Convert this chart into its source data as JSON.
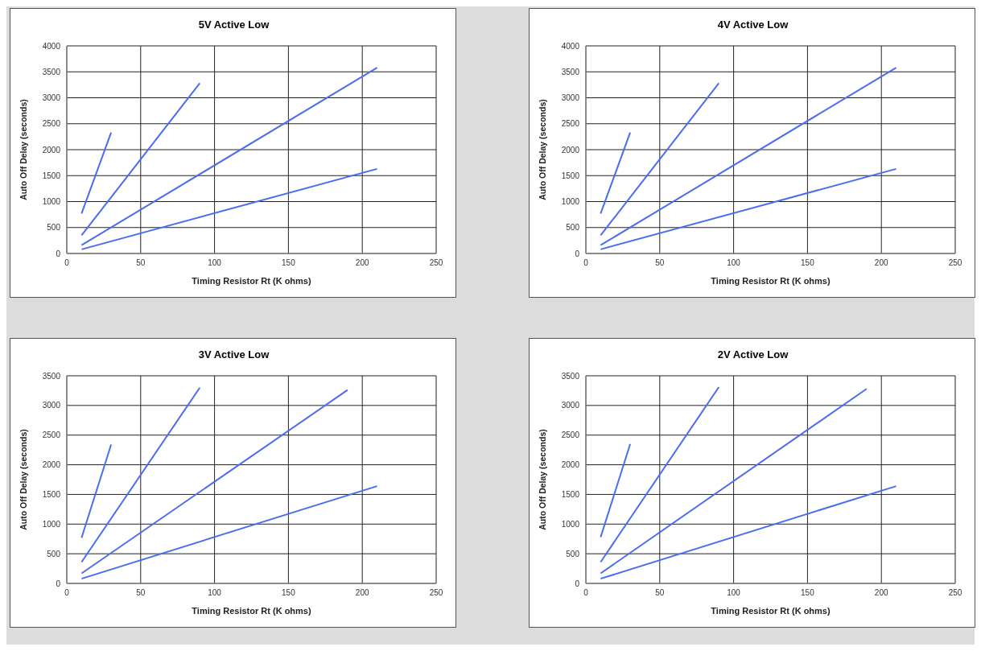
{
  "chart_data": [
    {
      "type": "line",
      "title": "5V Active Low",
      "xlabel": "Timing Resistor  Rt (K ohms)",
      "ylabel": "Auto Off Delay (seconds)",
      "xlim": [
        0,
        250
      ],
      "xticks": [
        0,
        50,
        100,
        150,
        200,
        250
      ],
      "ylim": [
        0,
        4000
      ],
      "yticks": [
        0,
        500,
        1000,
        1500,
        2000,
        2500,
        3000,
        3500,
        4000
      ],
      "grid": true,
      "marker": "none",
      "line_style": "solid",
      "series": [
        {
          "color": "#4a6cf0",
          "x": [
            10,
            30
          ],
          "values": [
            770,
            2330
          ]
        },
        {
          "color": "#4a6cf0",
          "x": [
            10,
            90
          ],
          "values": [
            350,
            3280
          ]
        },
        {
          "color": "#4a6cf0",
          "x": [
            10,
            210
          ],
          "values": [
            160,
            3580
          ]
        },
        {
          "color": "#4a6cf0",
          "x": [
            10,
            210
          ],
          "values": [
            80,
            1630
          ]
        }
      ]
    },
    {
      "type": "line",
      "title": "4V Active Low",
      "xlabel": "Timing Resistor  Rt (K ohms)",
      "ylabel": "Auto Off Delay (seconds)",
      "xlim": [
        0,
        250
      ],
      "xticks": [
        0,
        50,
        100,
        150,
        200,
        250
      ],
      "ylim": [
        0,
        4000
      ],
      "yticks": [
        0,
        500,
        1000,
        1500,
        2000,
        2500,
        3000,
        3500,
        4000
      ],
      "grid": true,
      "marker": "none",
      "line_style": "solid",
      "series": [
        {
          "color": "#4a6cf0",
          "x": [
            10,
            30
          ],
          "values": [
            770,
            2330
          ]
        },
        {
          "color": "#4a6cf0",
          "x": [
            10,
            90
          ],
          "values": [
            350,
            3280
          ]
        },
        {
          "color": "#4a6cf0",
          "x": [
            10,
            210
          ],
          "values": [
            160,
            3580
          ]
        },
        {
          "color": "#4a6cf0",
          "x": [
            10,
            210
          ],
          "values": [
            80,
            1630
          ]
        }
      ]
    },
    {
      "type": "line",
      "title": "3V Active Low",
      "xlabel": "Timing Resistor  Rt (K ohms)",
      "ylabel": "Auto Off Delay (seconds)",
      "xlim": [
        0,
        250
      ],
      "xticks": [
        0,
        50,
        100,
        150,
        200,
        250
      ],
      "ylim": [
        0,
        3500
      ],
      "yticks": [
        0,
        500,
        1000,
        1500,
        2000,
        2500,
        3000,
        3500
      ],
      "grid": true,
      "marker": "none",
      "line_style": "solid",
      "series": [
        {
          "color": "#4a6cf0",
          "x": [
            10,
            30
          ],
          "values": [
            770,
            2340
          ]
        },
        {
          "color": "#4a6cf0",
          "x": [
            10,
            90
          ],
          "values": [
            360,
            3300
          ]
        },
        {
          "color": "#4a6cf0",
          "x": [
            10,
            190
          ],
          "values": [
            170,
            3260
          ]
        },
        {
          "color": "#4a6cf0",
          "x": [
            10,
            210
          ],
          "values": [
            80,
            1640
          ]
        }
      ]
    },
    {
      "type": "line",
      "title": "2V Active Low",
      "xlabel": "Timing Resistor  Rt (K ohms)",
      "ylabel": "Auto Off Delay (seconds)",
      "xlim": [
        0,
        250
      ],
      "xticks": [
        0,
        50,
        100,
        150,
        200,
        250
      ],
      "ylim": [
        0,
        3500
      ],
      "yticks": [
        0,
        500,
        1000,
        1500,
        2000,
        2500,
        3000,
        3500
      ],
      "grid": true,
      "marker": "none",
      "line_style": "solid",
      "series": [
        {
          "color": "#4a6cf0",
          "x": [
            10,
            30
          ],
          "values": [
            780,
            2350
          ]
        },
        {
          "color": "#4a6cf0",
          "x": [
            10,
            90
          ],
          "values": [
            360,
            3310
          ]
        },
        {
          "color": "#4a6cf0",
          "x": [
            10,
            190
          ],
          "values": [
            170,
            3280
          ]
        },
        {
          "color": "#4a6cf0",
          "x": [
            10,
            210
          ],
          "values": [
            80,
            1640
          ]
        }
      ]
    }
  ]
}
